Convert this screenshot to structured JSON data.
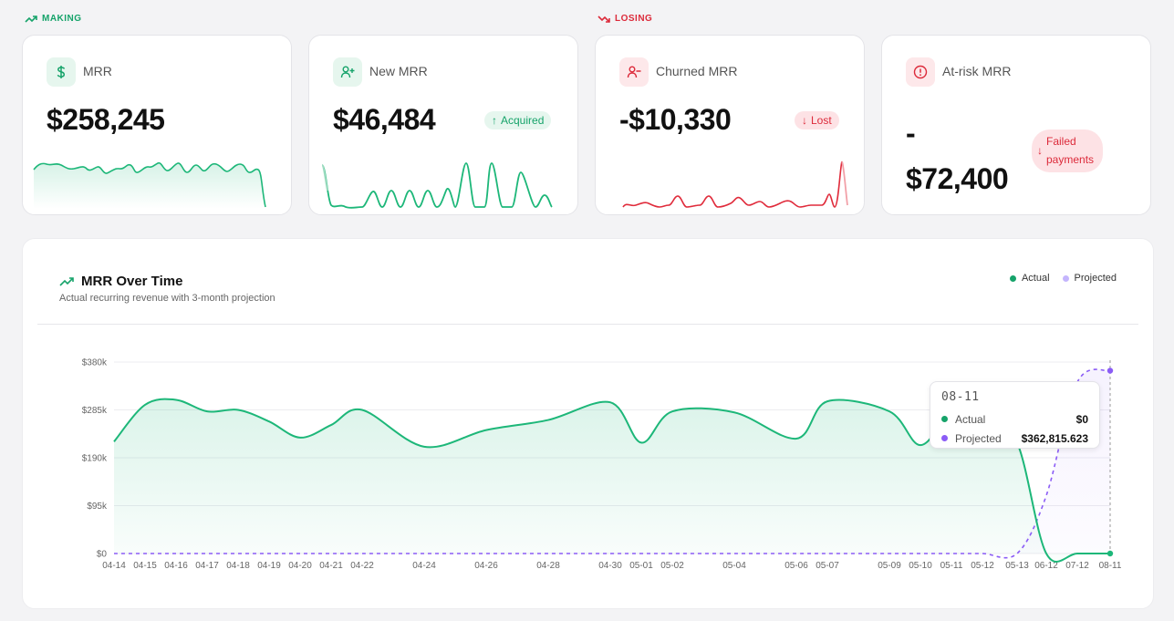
{
  "sections": {
    "making": "MAKING",
    "losing": "LOSING"
  },
  "cards": [
    {
      "title": "MRR",
      "value": "$258,245",
      "icon": "dollar-icon",
      "tone": "green"
    },
    {
      "title": "New MRR",
      "value": "$46,484",
      "icon": "user-plus-icon",
      "tone": "green",
      "badge": "Acquired"
    },
    {
      "title": "Churned MRR",
      "value": "-$10,330",
      "icon": "user-minus-icon",
      "tone": "red",
      "badge": "Lost"
    },
    {
      "title": "At-risk MRR",
      "value_line1": "-",
      "value_line2": "$72,400",
      "icon": "alert-circle-icon",
      "tone": "red",
      "badge_line1": "Failed",
      "badge_line2": "payments"
    }
  ],
  "colors": {
    "green": "#16a36a",
    "chart_green": "#1db779",
    "red": "#dc2a3a",
    "purple": "#8b5cf6"
  },
  "chart": {
    "title": "MRR Over Time",
    "subtitle": "Actual recurring revenue with 3-month projection",
    "legend": {
      "actual": "Actual",
      "projected": "Projected"
    },
    "tooltip": {
      "date": "08-11",
      "actual_label": "Actual",
      "actual_value": "$0",
      "projected_label": "Projected",
      "projected_value": "$362,815.623"
    }
  },
  "chart_data": {
    "type": "area",
    "y_ticks": [
      "$0",
      "$95k",
      "$190k",
      "$285k",
      "$380k"
    ],
    "ylim": [
      0,
      380000
    ],
    "x_tick_labels": [
      "04-14",
      "04-15",
      "04-16",
      "04-17",
      "04-18",
      "04-19",
      "04-20",
      "04-21",
      "04-22",
      "04-24",
      "04-26",
      "04-28",
      "04-30",
      "05-01",
      "05-02",
      "05-04",
      "05-06",
      "05-07",
      "05-09",
      "05-10",
      "05-11",
      "05-12",
      "05-13",
      "06-12",
      "07-12",
      "08-11"
    ],
    "series": [
      {
        "name": "Actual",
        "values": [
          222000,
          295000,
          305000,
          282000,
          285000,
          262000,
          230000,
          255000,
          285000,
          212000,
          245000,
          265000,
          300000,
          220000,
          282000,
          280000,
          228000,
          302000,
          282000,
          215000,
          280000,
          285000,
          220000,
          0,
          0,
          0
        ]
      },
      {
        "name": "Projected",
        "values": [
          0,
          0,
          0,
          0,
          0,
          0,
          0,
          0,
          0,
          0,
          0,
          0,
          0,
          0,
          0,
          0,
          0,
          0,
          0,
          0,
          0,
          0,
          0,
          115000,
          340000,
          362815.623
        ]
      }
    ]
  }
}
